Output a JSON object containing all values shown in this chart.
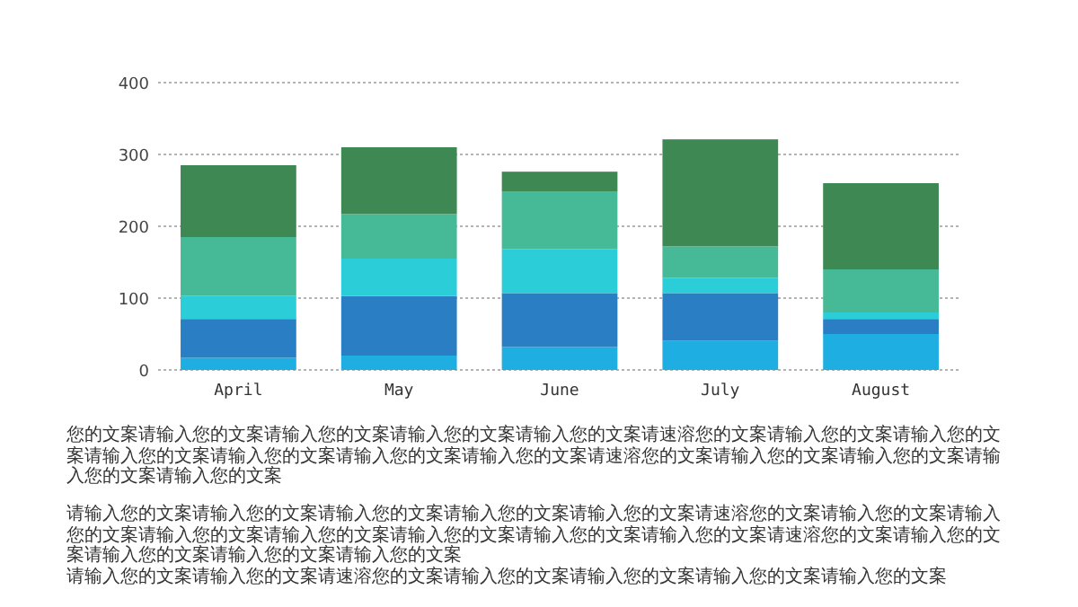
{
  "chart_data": {
    "type": "bar",
    "stacked": true,
    "categories": [
      "April",
      "May",
      "June",
      "July",
      "August"
    ],
    "series": [
      {
        "color": "#1eaee2",
        "values": [
          17,
          20,
          32,
          41,
          50
        ]
      },
      {
        "color": "#2a7fc4",
        "values": [
          54,
          83,
          75,
          66,
          21
        ]
      },
      {
        "color": "#2acdd8",
        "values": [
          32,
          52,
          61,
          21,
          9
        ]
      },
      {
        "color": "#46b997",
        "values": [
          82,
          62,
          80,
          44,
          60
        ]
      },
      {
        "color": "#3e8853",
        "values": [
          100,
          93,
          28,
          149,
          120
        ]
      }
    ],
    "ylim": [
      0,
      400
    ],
    "yticks": [
      0,
      100,
      200,
      300,
      400
    ],
    "grid": "y",
    "annotations": [
      "您的文案请输入您的文案请输入您的文案请输入您的文案请输入您的文案请速溶您的文案请输入您的文案请输入您的文案请输入您的文案请输入您的文案请输入您的文案请输入您的文案请速溶您的文案请输入您的文案请输入您的文案请输入您的文案请输入您的文案",
      "请输入您的文案请输入您的文案请输入您的文案请输入您的文案请输入您的文案请速溶您的文案请输入您的文案请输入您的文案请输入您的文案请输入您的文案请输入您的文案请输入您的文案请输入您的文案请速溶您的文案请输入您的文案请输入您的文案请输入您的文案请输入您的文案",
      "请输入您的文案请输入您的文案请速溶您的文案请输入您的文案请输入您的文案请输入您的文案请输入您的文案"
    ]
  }
}
